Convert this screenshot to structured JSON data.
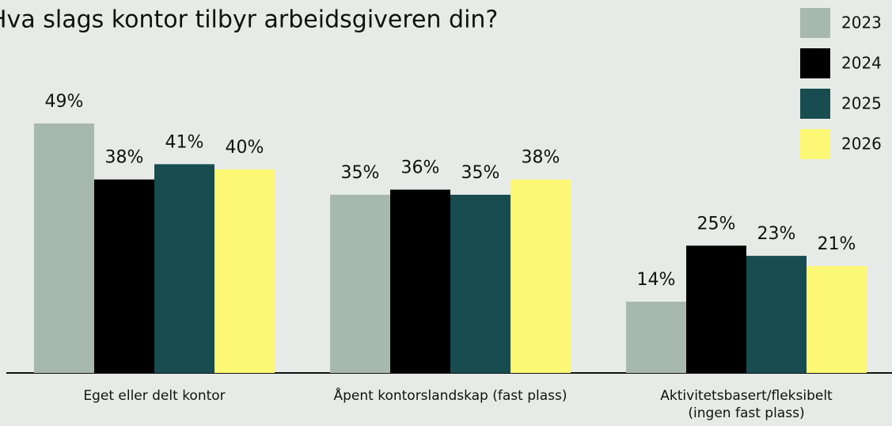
{
  "chart_data": {
    "type": "bar",
    "title": "Hva slags kontor tilbyr arbeidsgiveren din?",
    "categories": [
      "Eget eller delt kontor",
      "Åpent kontorslandskap (fast plass)",
      "Aktivitetsbasert/fleksibelt (ingen fast plass)"
    ],
    "series": [
      {
        "name": "2023",
        "color": "#a7b8b1",
        "values": [
          49,
          35,
          14
        ],
        "value_labels": [
          "49%",
          "35%",
          "14%"
        ]
      },
      {
        "name": "2024",
        "color": "#000000",
        "values": [
          38,
          36,
          25
        ],
        "value_labels": [
          "38%",
          "36%",
          "25%"
        ]
      },
      {
        "name": "2025",
        "color": "#184c50",
        "values": [
          41,
          35,
          23
        ],
        "value_labels": [
          "41%",
          "35%",
          "23%"
        ]
      },
      {
        "name": "2026",
        "color": "#fdf776",
        "values": [
          40,
          38,
          21
        ],
        "value_labels": [
          "40%",
          "38%",
          "21%"
        ]
      }
    ],
    "legend": "top-right"
  }
}
